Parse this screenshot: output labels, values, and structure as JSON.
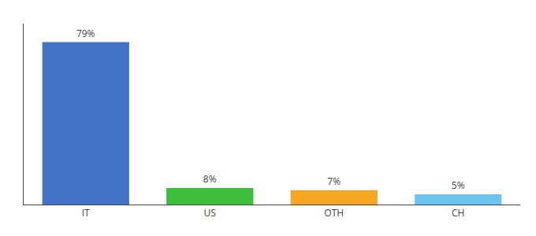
{
  "chart_data": {
    "type": "bar",
    "categories": [
      "IT",
      "US",
      "OTH",
      "CH"
    ],
    "values": [
      79,
      8,
      7,
      5
    ],
    "value_labels": [
      "79%",
      "8%",
      "7%",
      "5%"
    ],
    "data_labels": true,
    "colors": [
      "#4472c4",
      "#3dbc3d",
      "#f5a623",
      "#6ec6f0"
    ],
    "ylim": [
      0,
      88
    ],
    "tick_labels": "x",
    "grid": false
  }
}
